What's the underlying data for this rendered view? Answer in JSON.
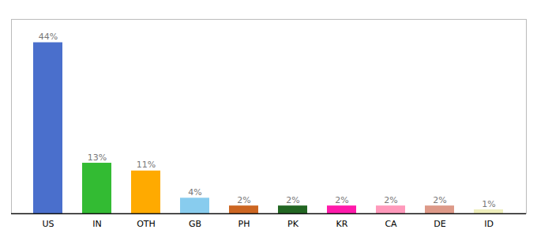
{
  "chart_data": {
    "type": "bar",
    "categories": [
      "US",
      "IN",
      "OTH",
      "GB",
      "PH",
      "PK",
      "KR",
      "CA",
      "DE",
      "ID"
    ],
    "values": [
      44,
      13,
      11,
      4,
      2,
      2,
      2,
      2,
      2,
      1
    ],
    "value_labels": [
      "44%",
      "13%",
      "11%",
      "4%",
      "2%",
      "2%",
      "2%",
      "2%",
      "2%",
      "1%"
    ],
    "colors": [
      "#4a6fcc",
      "#33bb33",
      "#ffaa00",
      "#88ccee",
      "#cc6622",
      "#226622",
      "#ff1aaa",
      "#ff99bb",
      "#dd9988",
      "#eeeebb"
    ],
    "ylim": [
      0,
      50
    ],
    "data_labels": true,
    "tick_labels": "x",
    "grid": false
  }
}
